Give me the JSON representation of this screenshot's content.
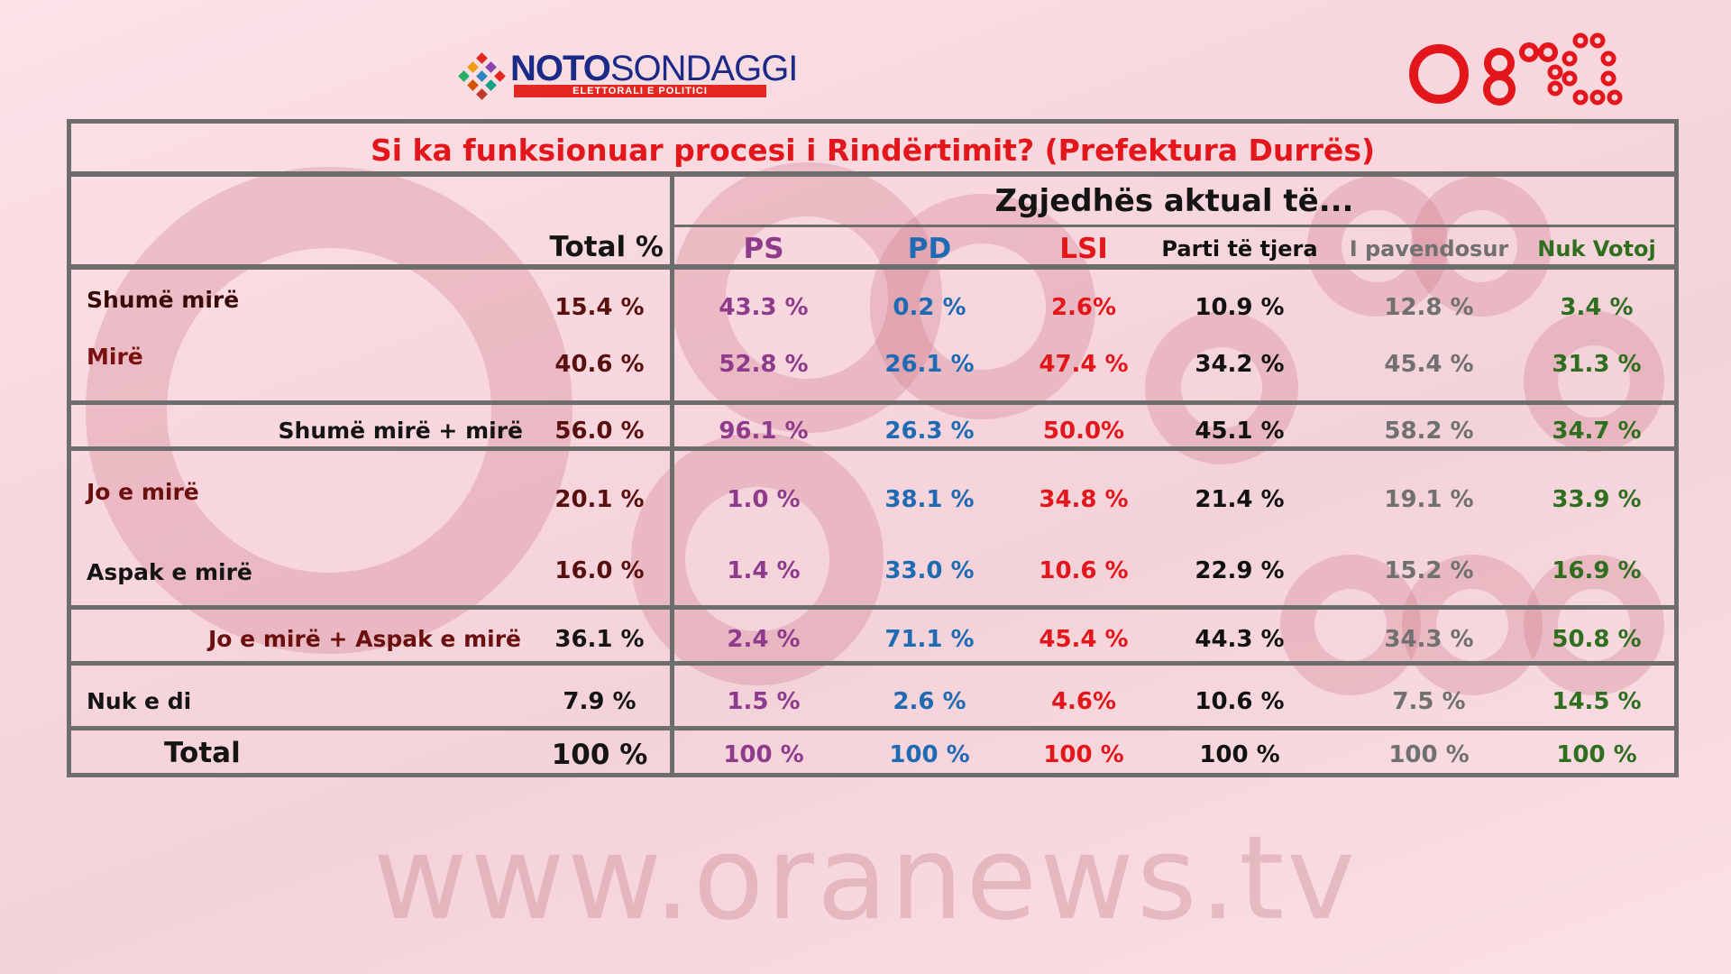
{
  "brand": {
    "noto_bold": "NOTO",
    "noto_light": "SONDAGGI",
    "noto_subtitle": "ELETTORALI E POLITICI",
    "watermark": "www.oranews.tv",
    "colors": {
      "accent_red": "#e3161b",
      "noto_blue": "#1b2a86"
    }
  },
  "chart_data": {
    "type": "table",
    "title": "Si ka funksionuar procesi i Rindërtimit? (Prefektura Durrës)",
    "group_header": "Zgjedhës aktual të...",
    "total_header": "Total %",
    "columns": [
      {
        "label": "PS",
        "color": "#8e3b8c"
      },
      {
        "label": "PD",
        "color": "#1f6bb3"
      },
      {
        "label": "LSI",
        "color": "#e3161b"
      },
      {
        "label": "Parti të tjera",
        "color": "#111111"
      },
      {
        "label": "I pavendosur",
        "color": "#707070"
      },
      {
        "label": "Nuk Votoj",
        "color": "#2f6e1e"
      }
    ],
    "rows": [
      {
        "label": "Shumë mirë",
        "total": "15.4 %",
        "values": [
          "43.3 %",
          "0.2 %",
          "2.6%",
          "10.9 %",
          "12.8 %",
          "3.4 %"
        ]
      },
      {
        "label": "Mirë",
        "total": "40.6 %",
        "values": [
          "52.8 %",
          "26.1 %",
          "47.4 %",
          "34.2 %",
          "45.4 %",
          "31.3 %"
        ]
      },
      {
        "label": "Shumë mirë + mirë",
        "total": "56.0 %",
        "values": [
          "96.1 %",
          "26.3 %",
          "50.0%",
          "45.1 %",
          "58.2 %",
          "34.7 %"
        ]
      },
      {
        "label": "Jo e mirë",
        "total": "20.1 %",
        "values": [
          "1.0 %",
          "38.1 %",
          "34.8 %",
          "21.4 %",
          "19.1 %",
          "33.9 %"
        ]
      },
      {
        "label": "Aspak e mirë",
        "total": "16.0 %",
        "values": [
          "1.4 %",
          "33.0 %",
          "10.6 %",
          "22.9 %",
          "15.2 %",
          "16.9 %"
        ]
      },
      {
        "label": "Jo e mirë + Aspak e mirë",
        "total": "36.1 %",
        "values": [
          "2.4 %",
          "71.1 %",
          "45.4 %",
          "44.3 %",
          "34.3 %",
          "50.8 %"
        ]
      },
      {
        "label": "Nuk e di",
        "total": "7.9 %",
        "values": [
          "1.5 %",
          "2.6 %",
          "4.6%",
          "10.6 %",
          "7.5 %",
          "14.5 %"
        ]
      },
      {
        "label": "Total",
        "total": "100 %",
        "values": [
          "100 %",
          "100 %",
          "100 %",
          "100 %",
          "100 %",
          "100 %"
        ]
      }
    ]
  }
}
